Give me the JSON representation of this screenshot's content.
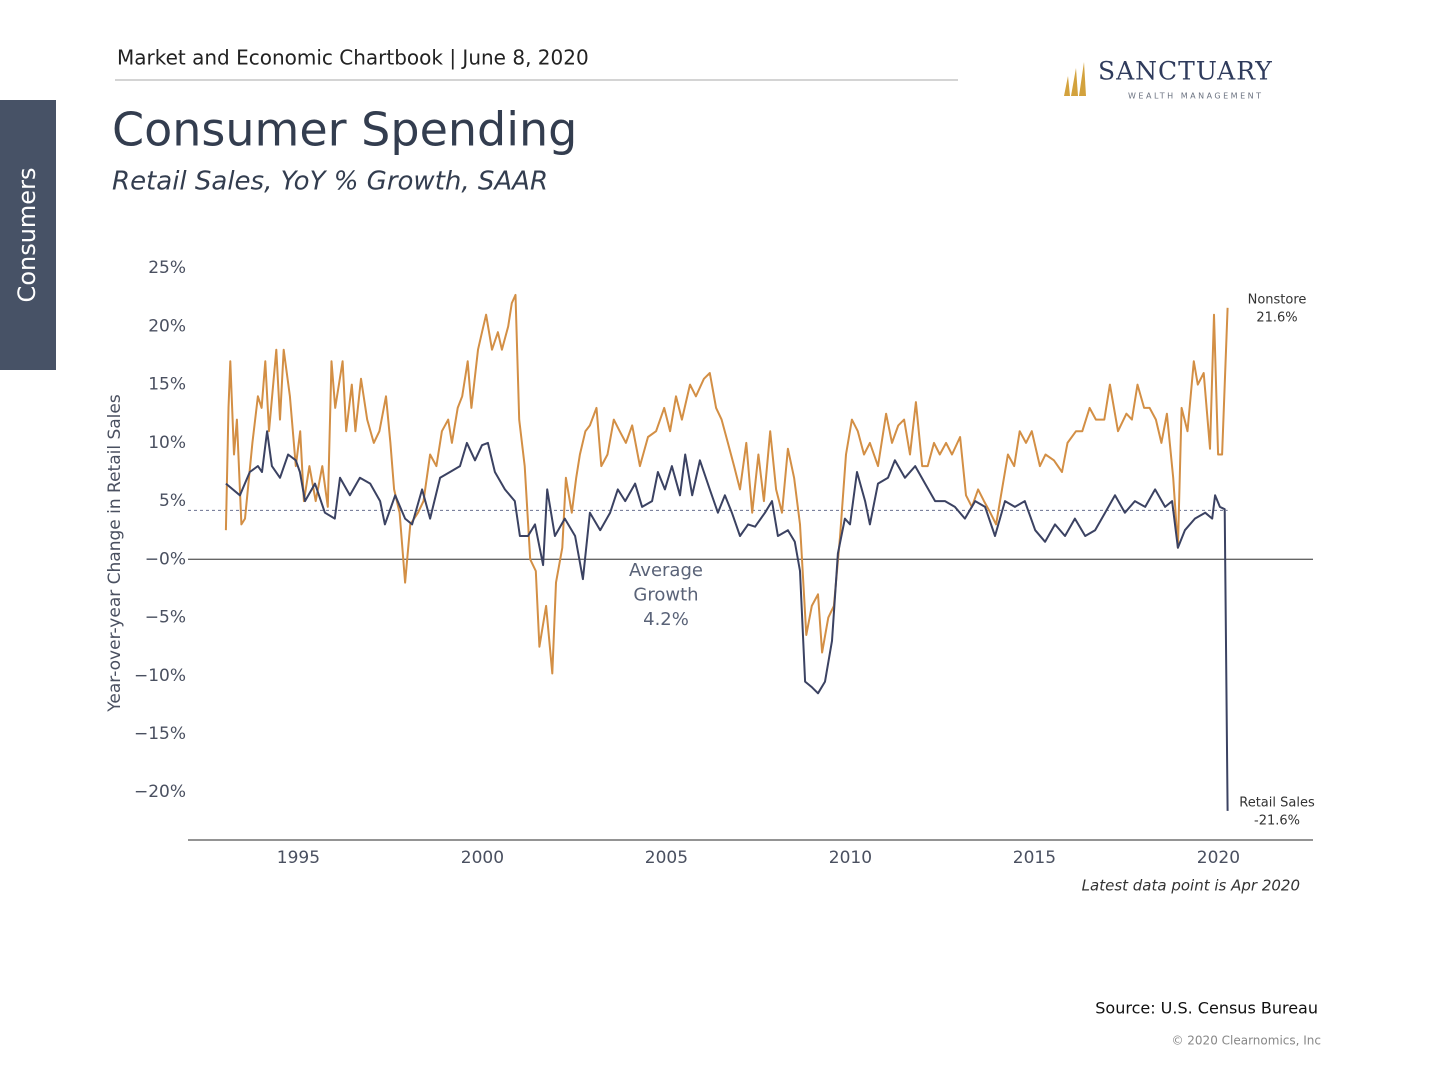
{
  "header": {
    "text": "Market and Economic Chartbook | June 8, 2020"
  },
  "logo": {
    "name": "SANCTUARY",
    "tagline": "WEALTH MANAGEMENT"
  },
  "sidebar": {
    "label": "Consumers"
  },
  "footer": {
    "source": "Source: U.S. Census Bureau",
    "copyright": "© 2020 Clearnomics, Inc"
  },
  "chart_data": {
    "type": "line",
    "title": "Consumer Spending",
    "subtitle": "Retail Sales, YoY % Growth, SAAR",
    "y_label": "Year-over-year Change in Retail Sales",
    "note": "Latest data point is Apr 2020",
    "xlim": [
      1992,
      2022.57
    ],
    "xticks": [
      1995,
      2000,
      2005,
      2010,
      2015,
      2020
    ],
    "ylim": [
      -24.1,
      25.7
    ],
    "yticks": [
      {
        "value": -20,
        "label": "−20%"
      },
      {
        "value": -15,
        "label": "−15%"
      },
      {
        "value": -10,
        "label": "−10%"
      },
      {
        "value": -5,
        "label": "−5%"
      },
      {
        "value": 0,
        "label": "−0%"
      },
      {
        "value": 5,
        "label": "5%"
      },
      {
        "value": 10,
        "label": "10%"
      },
      {
        "value": 15,
        "label": "15%"
      },
      {
        "value": 20,
        "label": "20%"
      },
      {
        "value": 25,
        "label": "25%"
      }
    ],
    "zero_line": true,
    "grid": false,
    "average": {
      "value": 4.2,
      "label": [
        "Average",
        "Growth",
        "4.2%"
      ]
    },
    "series": [
      {
        "name": "Nonstore",
        "color": "#d38f45",
        "end_label": "21.6%",
        "x": [
          1993.03,
          1993.1,
          1993.15,
          1993.25,
          1993.33,
          1993.45,
          1993.55,
          1993.75,
          1993.9,
          1994.0,
          1994.1,
          1994.2,
          1994.4,
          1994.5,
          1994.6,
          1994.77,
          1994.93,
          1995.05,
          1995.15,
          1995.3,
          1995.47,
          1995.65,
          1995.8,
          1995.9,
          1996.0,
          1996.2,
          1996.3,
          1996.45,
          1996.55,
          1996.7,
          1996.87,
          1997.05,
          1997.2,
          1997.38,
          1997.5,
          1997.6,
          1997.75,
          1997.9,
          1998.04,
          1998.25,
          1998.4,
          1998.58,
          1998.75,
          1998.9,
          1999.07,
          1999.17,
          1999.33,
          1999.45,
          1999.6,
          1999.7,
          1999.88,
          1999.99,
          2000.1,
          2000.26,
          2000.42,
          2000.53,
          2000.7,
          2000.8,
          2000.9,
          2001.0,
          2001.15,
          2001.3,
          2001.45,
          2001.55,
          2001.73,
          2001.9,
          2002.0,
          2002.17,
          2002.27,
          2002.43,
          2002.55,
          2002.65,
          2002.8,
          2002.92,
          2003.1,
          2003.23,
          2003.4,
          2003.57,
          2003.73,
          2003.9,
          2004.07,
          2004.28,
          2004.5,
          2004.72,
          2004.94,
          2005.1,
          2005.26,
          2005.42,
          2005.64,
          2005.8,
          2006.02,
          2006.18,
          2006.35,
          2006.5,
          2006.67,
          2006.84,
          2007.0,
          2007.17,
          2007.33,
          2007.5,
          2007.65,
          2007.82,
          2007.98,
          2008.14,
          2008.3,
          2008.47,
          2008.63,
          2008.8,
          2008.95,
          2009.12,
          2009.23,
          2009.4,
          2009.55,
          2009.72,
          2009.88,
          2010.04,
          2010.2,
          2010.37,
          2010.53,
          2010.75,
          2010.97,
          2011.13,
          2011.3,
          2011.46,
          2011.62,
          2011.78,
          2011.95,
          2012.1,
          2012.27,
          2012.43,
          2012.6,
          2012.76,
          2012.98,
          2013.14,
          2013.3,
          2013.47,
          2013.63,
          2013.8,
          2013.96,
          2014.12,
          2014.28,
          2014.45,
          2014.6,
          2014.77,
          2014.93,
          2015.15,
          2015.3,
          2015.53,
          2015.75,
          2015.9,
          2016.13,
          2016.3,
          2016.5,
          2016.67,
          2016.9,
          2017.05,
          2017.27,
          2017.5,
          2017.65,
          2017.8,
          2017.98,
          2018.13,
          2018.3,
          2018.45,
          2018.6,
          2018.77,
          2018.9,
          2019.0,
          2019.16,
          2019.33,
          2019.44,
          2019.6,
          2019.77,
          2019.88,
          2019.99,
          2020.1,
          2020.25
        ],
        "values": [
          2.5,
          13,
          17,
          9,
          12,
          3,
          3.5,
          10,
          14,
          13,
          17,
          11,
          18,
          12,
          18,
          14,
          8,
          11,
          5,
          8,
          5,
          8,
          4.5,
          17,
          13,
          17,
          11,
          15,
          11,
          15.5,
          12,
          10,
          11,
          14,
          10,
          6,
          4,
          -2,
          3,
          4,
          5,
          9,
          8,
          11,
          12,
          10,
          13,
          14,
          17,
          13,
          18,
          19.5,
          21,
          18,
          19.5,
          18,
          20,
          22,
          22.7,
          12,
          8,
          0,
          -1,
          -7.5,
          -4,
          -9.8,
          -2,
          1,
          7,
          4,
          7,
          9,
          11,
          11.5,
          13,
          8,
          9,
          12,
          11,
          10,
          11.5,
          8,
          10.5,
          11,
          13,
          11,
          14,
          12,
          15,
          14,
          15.5,
          16,
          13,
          12,
          10,
          8,
          6,
          10,
          4,
          9,
          5,
          11,
          6,
          4,
          9.5,
          7,
          3,
          -6.5,
          -4,
          -3,
          -8,
          -5,
          -4,
          2,
          9,
          12,
          11,
          9,
          10,
          8,
          12.5,
          10,
          11.5,
          12,
          9,
          13.5,
          8,
          8,
          10,
          9,
          10,
          9,
          10.5,
          5.5,
          4.5,
          6,
          5,
          4,
          3,
          6,
          9,
          8,
          11,
          10,
          11,
          8,
          9,
          8.5,
          7.5,
          10,
          11,
          11,
          13,
          12,
          12,
          15,
          11,
          12.5,
          12,
          15,
          13,
          13,
          12,
          10,
          12.5,
          7,
          1,
          13,
          11,
          17,
          15,
          16,
          9.5,
          21,
          9,
          9,
          21.6
        ]
      },
      {
        "name": "Retail Sales",
        "color": "#3b4262",
        "end_label": "-21.6%",
        "x": [
          1993.03,
          1993.41,
          1993.68,
          1993.9,
          1994.01,
          1994.15,
          1994.28,
          1994.5,
          1994.72,
          1994.93,
          1995.04,
          1995.18,
          1995.45,
          1995.72,
          1995.99,
          1996.13,
          1996.4,
          1996.67,
          1996.95,
          1997.22,
          1997.35,
          1997.63,
          1997.9,
          1998.09,
          1998.36,
          1998.58,
          1998.85,
          1999.12,
          1999.39,
          1999.58,
          1999.8,
          1999.99,
          2000.15,
          2000.34,
          2000.61,
          2000.88,
          2001.02,
          2001.24,
          2001.43,
          2001.65,
          2001.76,
          2001.97,
          2002.24,
          2002.52,
          2002.73,
          2002.92,
          2003.2,
          2003.47,
          2003.68,
          2003.88,
          2004.15,
          2004.34,
          2004.61,
          2004.77,
          2004.96,
          2005.15,
          2005.37,
          2005.51,
          2005.7,
          2005.91,
          2006.18,
          2006.4,
          2006.59,
          2006.78,
          2007.0,
          2007.22,
          2007.41,
          2007.68,
          2007.87,
          2008.03,
          2008.3,
          2008.49,
          2008.63,
          2008.77,
          2008.96,
          2009.12,
          2009.31,
          2009.5,
          2009.66,
          2009.85,
          2009.99,
          2010.18,
          2010.4,
          2010.53,
          2010.75,
          2011.02,
          2011.21,
          2011.48,
          2011.76,
          2012.03,
          2012.3,
          2012.57,
          2012.84,
          2013.11,
          2013.39,
          2013.66,
          2013.93,
          2014.2,
          2014.47,
          2014.74,
          2015.02,
          2015.29,
          2015.56,
          2015.83,
          2016.1,
          2016.38,
          2016.65,
          2016.92,
          2017.19,
          2017.46,
          2017.73,
          2018.01,
          2018.28,
          2018.55,
          2018.74,
          2018.9,
          2019.09,
          2019.36,
          2019.64,
          2019.83,
          2019.91,
          2020.04,
          2020.17,
          2020.25
        ],
        "values": [
          6.5,
          5.5,
          7.5,
          8,
          7.5,
          11,
          8,
          7,
          9,
          8.5,
          7.5,
          5,
          6.5,
          4,
          3.5,
          7,
          5.5,
          7,
          6.5,
          5,
          3,
          5.5,
          3.5,
          3,
          6,
          3.5,
          7,
          7.5,
          8,
          10,
          8.5,
          9.8,
          10,
          7.5,
          6,
          5,
          2,
          2,
          3,
          -0.5,
          6,
          2,
          3.5,
          2,
          -1.7,
          4,
          2.5,
          4,
          6,
          5,
          6.5,
          4.5,
          5,
          7.5,
          6,
          8,
          5.5,
          9,
          5.5,
          8.5,
          6,
          4,
          5.5,
          4,
          2,
          3,
          2.8,
          4,
          5,
          2,
          2.5,
          1.5,
          -1,
          -10.5,
          -11,
          -11.5,
          -10.5,
          -7,
          0.5,
          3.5,
          3,
          7.5,
          5,
          3,
          6.5,
          7,
          8.5,
          7,
          8,
          6.5,
          5,
          5,
          4.5,
          3.5,
          5,
          4.5,
          2,
          5,
          4.5,
          5,
          2.5,
          1.5,
          3,
          2,
          3.5,
          2,
          2.5,
          4,
          5.5,
          4,
          5,
          4.5,
          6,
          4.5,
          5,
          1,
          2.5,
          3.5,
          4,
          3.5,
          5.5,
          4.5,
          4.3,
          -21.6
        ]
      }
    ]
  }
}
